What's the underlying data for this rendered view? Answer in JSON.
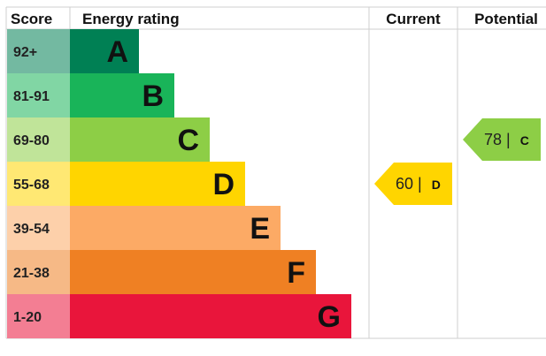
{
  "chart_data": {
    "type": "bar",
    "headers": {
      "score": "Score",
      "rating": "Energy rating",
      "current": "Current",
      "potential": "Potential"
    },
    "bands": [
      {
        "letter": "A",
        "score": "92+",
        "min": 92,
        "max": 100,
        "color": "#008054"
      },
      {
        "letter": "B",
        "score": "81-91",
        "min": 81,
        "max": 91,
        "color": "#19b459"
      },
      {
        "letter": "C",
        "score": "69-80",
        "min": 69,
        "max": 80,
        "color": "#8dce46"
      },
      {
        "letter": "D",
        "score": "55-68",
        "min": 55,
        "max": 68,
        "color": "#ffd500"
      },
      {
        "letter": "E",
        "score": "39-54",
        "min": 39,
        "max": 54,
        "color": "#fcaa65"
      },
      {
        "letter": "F",
        "score": "21-38",
        "min": 21,
        "max": 38,
        "color": "#ef8023"
      },
      {
        "letter": "G",
        "score": "1-20",
        "min": 1,
        "max": 20,
        "color": "#e9153b"
      }
    ],
    "current": {
      "value": 60,
      "separator": "|",
      "letter": "D",
      "color": "#ffd500"
    },
    "potential": {
      "value": 78,
      "separator": "|",
      "letter": "C",
      "color": "#8dce46"
    }
  }
}
